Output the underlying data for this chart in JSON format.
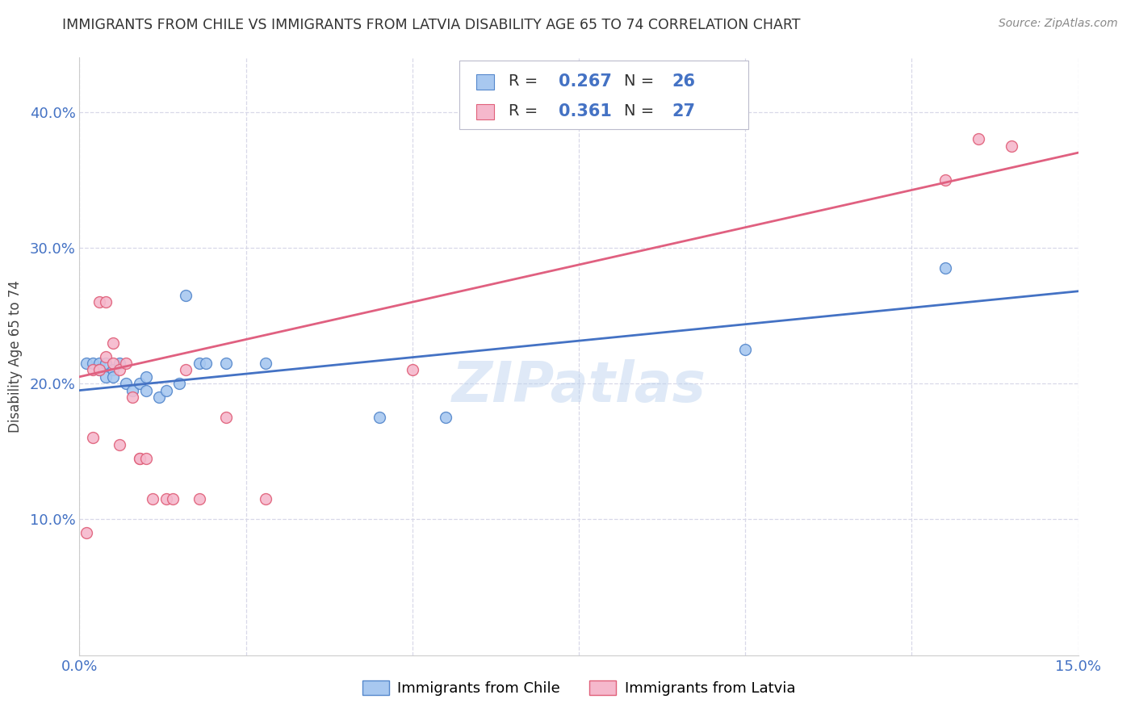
{
  "title": "IMMIGRANTS FROM CHILE VS IMMIGRANTS FROM LATVIA DISABILITY AGE 65 TO 74 CORRELATION CHART",
  "source": "Source: ZipAtlas.com",
  "ylabel_label": "Disability Age 65 to 74",
  "xlim": [
    0.0,
    0.15
  ],
  "ylim": [
    0.0,
    0.44
  ],
  "xticks": [
    0.0,
    0.025,
    0.05,
    0.075,
    0.1,
    0.125,
    0.15
  ],
  "xtick_labels": [
    "0.0%",
    "",
    "",
    "",
    "",
    "",
    "15.0%"
  ],
  "yticks": [
    0.1,
    0.2,
    0.3,
    0.4
  ],
  "ytick_labels": [
    "10.0%",
    "20.0%",
    "30.0%",
    "40.0%"
  ],
  "chile_color": "#a8c8f0",
  "latvia_color": "#f5b8cc",
  "chile_edge_color": "#5588cc",
  "latvia_edge_color": "#e0607a",
  "chile_line_color": "#4472c4",
  "latvia_line_color": "#e06080",
  "chile_R": 0.267,
  "chile_N": 26,
  "latvia_R": 0.361,
  "latvia_N": 27,
  "chile_scatter_x": [
    0.001,
    0.002,
    0.003,
    0.003,
    0.004,
    0.004,
    0.005,
    0.005,
    0.006,
    0.007,
    0.008,
    0.009,
    0.01,
    0.01,
    0.012,
    0.013,
    0.015,
    0.016,
    0.018,
    0.019,
    0.022,
    0.028,
    0.045,
    0.055,
    0.1,
    0.13
  ],
  "chile_scatter_y": [
    0.215,
    0.215,
    0.215,
    0.21,
    0.215,
    0.205,
    0.21,
    0.205,
    0.215,
    0.2,
    0.195,
    0.2,
    0.195,
    0.205,
    0.19,
    0.195,
    0.2,
    0.265,
    0.215,
    0.215,
    0.215,
    0.215,
    0.175,
    0.175,
    0.225,
    0.285
  ],
  "latvia_scatter_x": [
    0.001,
    0.002,
    0.002,
    0.003,
    0.003,
    0.004,
    0.004,
    0.005,
    0.005,
    0.006,
    0.006,
    0.007,
    0.008,
    0.009,
    0.009,
    0.01,
    0.011,
    0.013,
    0.014,
    0.016,
    0.018,
    0.022,
    0.028,
    0.05,
    0.13,
    0.135,
    0.14
  ],
  "latvia_scatter_y": [
    0.09,
    0.21,
    0.16,
    0.26,
    0.21,
    0.26,
    0.22,
    0.215,
    0.23,
    0.21,
    0.155,
    0.215,
    0.19,
    0.145,
    0.145,
    0.145,
    0.115,
    0.115,
    0.115,
    0.21,
    0.115,
    0.175,
    0.115,
    0.21,
    0.35,
    0.38,
    0.375
  ],
  "grid_color": "#d8d8e8",
  "background_color": "#ffffff",
  "watermark": "ZIPatlas",
  "marker_size": 100,
  "line_width": 2.0,
  "tick_fontsize": 13,
  "axis_label_fontsize": 12,
  "title_fontsize": 12.5,
  "legend_text_color": "#333333",
  "legend_value_color": "#4472c4"
}
